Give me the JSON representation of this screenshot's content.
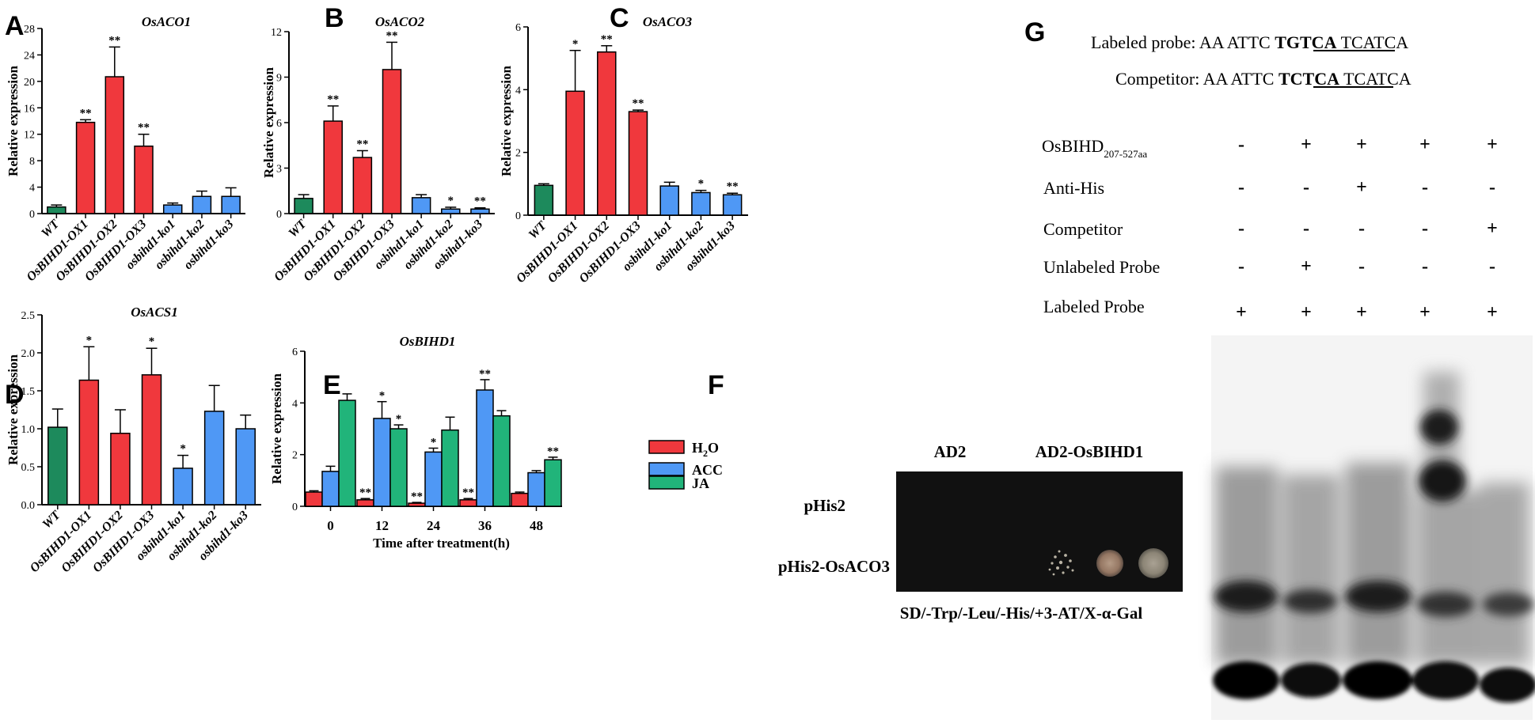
{
  "colors": {
    "wt": "#1d8a5c",
    "ox": "#f0383d",
    "ko": "#4f98f5",
    "h2o": "#f0383d",
    "acc": "#4f98f5",
    "ja": "#21b47a"
  },
  "panel_labels": {
    "a": "A",
    "b": "B",
    "c": "C",
    "d": "D",
    "e": "E",
    "f": "F",
    "g": "G"
  },
  "ylabel": "Relative expression",
  "chart_data": [
    {
      "id": "A",
      "type": "bar",
      "title": "OsACO1",
      "ylim": [
        0,
        28
      ],
      "yticks": [
        "0",
        "4",
        "8",
        "12",
        "16",
        "20",
        "24",
        "28"
      ],
      "categories": [
        "WT",
        "OsBIHD1-OX1",
        "OsBIHD1-OX2",
        "OsBIHD1-OX3",
        "osbihd1-ko1",
        "osbihd1-ko2",
        "osbihd1-ko3"
      ],
      "groups": [
        "wt",
        "ox",
        "ox",
        "ox",
        "ko",
        "ko",
        "ko"
      ],
      "values": [
        1.0,
        13.8,
        20.7,
        10.2,
        1.3,
        2.6,
        2.6
      ],
      "errors": [
        0.3,
        0.4,
        4.5,
        1.8,
        0.3,
        0.8,
        1.3
      ],
      "signif": [
        "",
        "**",
        "**",
        "**",
        "",
        "",
        ""
      ]
    },
    {
      "id": "B",
      "type": "bar",
      "title": "OsACO2",
      "ylim": [
        0,
        12
      ],
      "yticks": [
        "0",
        "3",
        "6",
        "9",
        "12"
      ],
      "categories": [
        "WT",
        "OsBIHD1-OX1",
        "OsBIHD1-OX2",
        "OsBIHD1-OX3",
        "osbihd1-ko1",
        "osbihd1-ko2",
        "osbihd1-ko3"
      ],
      "groups": [
        "wt",
        "ox",
        "ox",
        "ox",
        "ko",
        "ko",
        "ko"
      ],
      "values": [
        1.0,
        6.1,
        3.7,
        9.5,
        1.05,
        0.3,
        0.3
      ],
      "errors": [
        0.25,
        1.0,
        0.45,
        1.8,
        0.2,
        0.12,
        0.08
      ],
      "signif": [
        "",
        "**",
        "**",
        "**",
        "",
        "*",
        "**"
      ]
    },
    {
      "id": "C",
      "type": "bar",
      "title": "OsACO3",
      "ylim": [
        0,
        6
      ],
      "yticks": [
        "0",
        "2",
        "4",
        "6"
      ],
      "categories": [
        "WT",
        "OsBIHD1-OX1",
        "OsBIHD1-OX2",
        "OsBIHD1-OX3",
        "osbihd1-ko1",
        "osbihd1-ko2",
        "osbihd1-ko3"
      ],
      "groups": [
        "wt",
        "ox",
        "ox",
        "ox",
        "ko",
        "ko",
        "ko"
      ],
      "values": [
        0.95,
        3.95,
        5.2,
        3.3,
        0.93,
        0.72,
        0.65
      ],
      "errors": [
        0.05,
        1.3,
        0.2,
        0.05,
        0.12,
        0.07,
        0.05
      ],
      "signif": [
        "",
        "*",
        "**",
        "**",
        "",
        "*",
        "**"
      ]
    },
    {
      "id": "D",
      "type": "bar",
      "title": "OsACS1",
      "ylim": [
        0,
        2.5
      ],
      "yticks": [
        "0.0",
        "0.5",
        "1.0",
        "1.5",
        "2.0",
        "2.5"
      ],
      "categories": [
        "WT",
        "OsBIHD1-OX1",
        "OsBIHD1-OX2",
        "OsBIHD1-OX3",
        "osbihd1-ko1",
        "osbihd1-ko2",
        "osbihd1-ko3"
      ],
      "groups": [
        "wt",
        "ox",
        "ox",
        "ox",
        "ko",
        "ko",
        "ko"
      ],
      "values": [
        1.02,
        1.64,
        0.94,
        1.71,
        0.48,
        1.23,
        1.0
      ],
      "errors": [
        0.24,
        0.44,
        0.31,
        0.35,
        0.17,
        0.34,
        0.18
      ],
      "signif": [
        "",
        "*",
        "",
        "*",
        "*",
        "",
        ""
      ]
    },
    {
      "id": "E",
      "type": "bar",
      "title": "OsBIHD1",
      "ylim": [
        0,
        6
      ],
      "yticks": [
        "0",
        "2",
        "4",
        "6"
      ],
      "xlabel": "Time after treatment(h)",
      "categories": [
        "0",
        "12",
        "24",
        "36",
        "48"
      ],
      "series": [
        {
          "name": "H2O",
          "key": "h2o",
          "values": [
            0.55,
            0.25,
            0.12,
            0.25,
            0.5
          ],
          "errors": [
            0.05,
            0.05,
            0.03,
            0.05,
            0.05
          ],
          "signif": [
            "",
            "**",
            "**",
            "**",
            ""
          ]
        },
        {
          "name": "ACC",
          "key": "acc",
          "values": [
            1.35,
            3.4,
            2.1,
            4.5,
            1.3
          ],
          "errors": [
            0.2,
            0.65,
            0.15,
            0.4,
            0.08
          ],
          "signif": [
            "",
            "*",
            "*",
            "**",
            ""
          ]
        },
        {
          "name": "JA",
          "key": "ja",
          "values": [
            4.1,
            3.0,
            2.95,
            3.5,
            1.8
          ],
          "errors": [
            0.25,
            0.15,
            0.5,
            0.2,
            0.1
          ],
          "signif": [
            "",
            "*",
            "",
            "",
            "**"
          ]
        }
      ]
    }
  ],
  "panel_f": {
    "col_labels": [
      "AD2",
      "AD2-OsBIHD1"
    ],
    "row_labels": [
      "pHis2",
      "pHis2-OsACO3"
    ],
    "media": "SD/-Trp/-Leu/-His/+3-AT/X-α-Gal"
  },
  "panel_g": {
    "probe": {
      "label": "Labeled probe:",
      "pre": "AA ATTC ",
      "core": "TGTCA",
      "post": " TCATCA"
    },
    "competitor": {
      "label": "Competitor:",
      "pre": "AA ATTC ",
      "core": "TCTCA",
      "post": " TCATCA"
    },
    "row_osbihd": {
      "label": "OsBIHD",
      "sub": "207-527aa",
      "signs": [
        "-",
        "+",
        "+",
        "+",
        "+"
      ]
    },
    "rows": [
      {
        "label": "Anti-His",
        "signs": [
          "-",
          "-",
          "+",
          "-",
          "-"
        ]
      },
      {
        "label": "Competitor",
        "signs": [
          "-",
          "-",
          "-",
          "-",
          "+"
        ]
      },
      {
        "label": "Unlabeled Probe",
        "signs": [
          "-",
          "+",
          "-",
          "-",
          "-"
        ]
      },
      {
        "label": "Labeled Probe",
        "signs": [
          "+",
          "+",
          "+",
          "+",
          "+"
        ]
      }
    ]
  }
}
